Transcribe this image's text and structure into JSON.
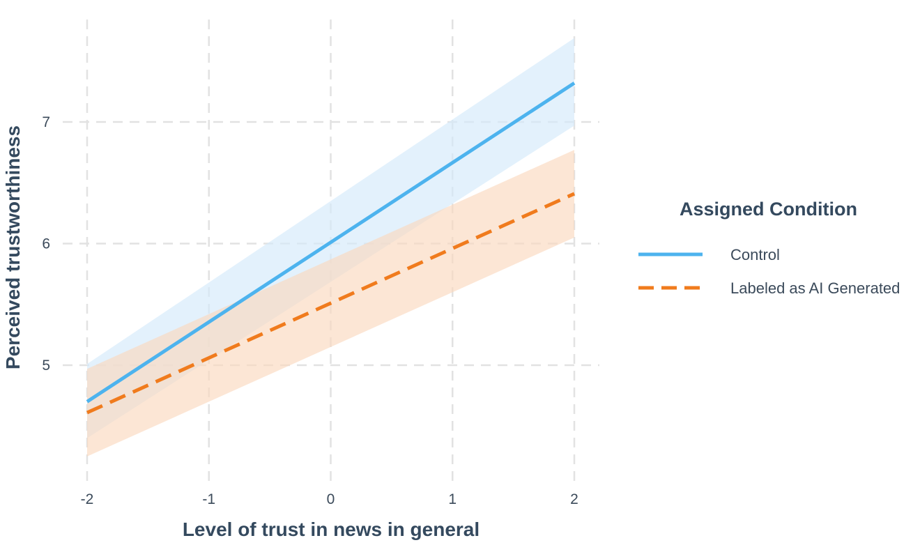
{
  "chart_data": {
    "type": "line",
    "title": "",
    "xlabel": "Level of trust in news in general",
    "ylabel": "Perceived trustworthiness",
    "xlim": [
      -2.05,
      2.05
    ],
    "ylim": [
      4.12,
      7.92
    ],
    "x_ticks": [
      -2,
      -1,
      0,
      1,
      2
    ],
    "x_tick_labels": [
      "-2",
      "-1",
      "0",
      "1",
      "2"
    ],
    "y_ticks": [
      5,
      6,
      7
    ],
    "y_tick_labels": [
      "5",
      "6",
      "7"
    ],
    "grid": true,
    "legend": {
      "title": "Assigned Condition",
      "placement": "right"
    },
    "series": [
      {
        "name": "Control",
        "color": "#4db3ee",
        "band_color": "#d4eafb",
        "line_style": "solid",
        "x": [
          -2,
          2
        ],
        "y": [
          4.7,
          7.32
        ],
        "ci_low": [
          4.4,
          6.97
        ],
        "ci_high": [
          5.01,
          7.69
        ]
      },
      {
        "name": "Labeled as AI Generated",
        "color": "#f07b1d",
        "band_color": "#fbd9bf",
        "line_style": "dashed",
        "x": [
          -2,
          2
        ],
        "y": [
          4.61,
          6.41
        ],
        "ci_low": [
          4.25,
          6.05
        ],
        "ci_high": [
          4.97,
          6.77
        ]
      }
    ]
  }
}
